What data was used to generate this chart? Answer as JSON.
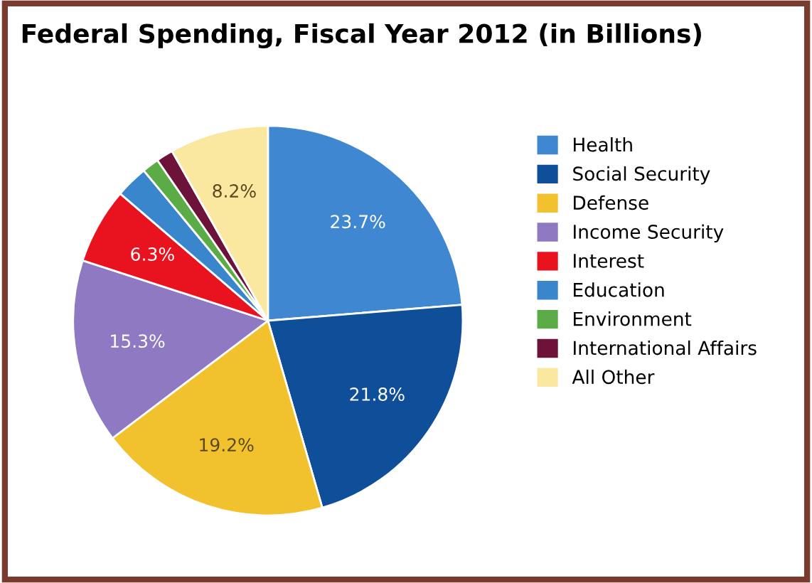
{
  "chart_data": {
    "type": "pie",
    "title": "Federal Spending, Fiscal Year 2012 (in Billions)",
    "categories": [
      "Health",
      "Social Security",
      "Defense",
      "Income Security",
      "Interest",
      "Education",
      "Environment",
      "International Affairs",
      "All Other"
    ],
    "values": [
      23.7,
      21.8,
      19.2,
      15.3,
      6.3,
      2.7,
      1.4,
      1.4,
      8.2
    ],
    "colors": [
      "#3f87d0",
      "#0f4f9a",
      "#f2c12e",
      "#8e79c2",
      "#e8131f",
      "#3a86cc",
      "#5bab47",
      "#6d1239",
      "#fbe8a0"
    ],
    "value_labels": [
      "23.7%",
      "21.8%",
      "19.2%",
      "15.3%",
      "6.3%",
      null,
      null,
      null,
      "8.2%"
    ],
    "legend": "right"
  }
}
